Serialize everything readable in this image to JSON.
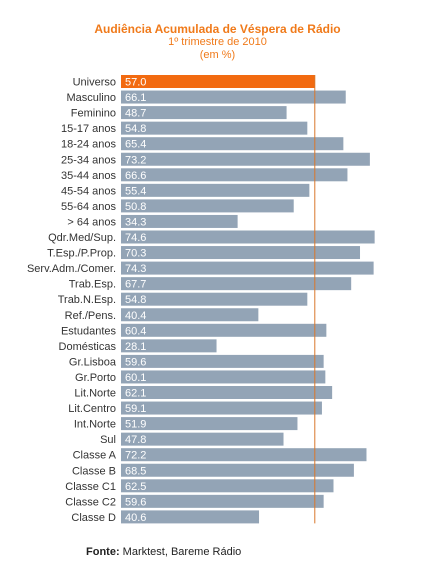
{
  "colors": {
    "title": "#f07a1a",
    "bar": "#93a4b6",
    "highlight_bar": "#f26a10",
    "reference_line": "#d9772b",
    "label": "#333333",
    "value_text": "#ffffff"
  },
  "title": {
    "main": "Audiência Acumulada de Véspera de Rádio",
    "sub1": "1º trimestre de 2010",
    "sub2": "(em %)"
  },
  "footer": {
    "label": "Fonte:",
    "text": " Marktest, Bareme Rádio"
  },
  "chart_data": {
    "type": "bar",
    "orientation": "horizontal",
    "title": "Audiência Acumulada de Véspera de Rádio",
    "subtitle": "1º trimestre de 2010 (em %)",
    "categories": [
      "Universo",
      "Masculino",
      "Feminino",
      "15-17 anos",
      "18-24 anos",
      "25-34 anos",
      "35-44 anos",
      "45-54 anos",
      "55-64 anos",
      "> 64 anos",
      "Qdr.Med/Sup.",
      "T.Esp./P.Prop.",
      "Serv.Adm./Comer.",
      "Trab.Esp.",
      "Trab.N.Esp.",
      "Ref./Pens.",
      "Estudantes",
      "Domésticas",
      "Gr.Lisboa",
      "Gr.Porto",
      "Lit.Norte",
      "Lit.Centro",
      "Int.Norte",
      "Sul",
      "Classe A",
      "Classe B",
      "Classe C1",
      "Classe C2",
      "Classe D"
    ],
    "values": [
      57.0,
      66.1,
      48.7,
      54.8,
      65.4,
      73.2,
      66.6,
      55.4,
      50.8,
      34.3,
      74.6,
      70.3,
      74.3,
      67.7,
      54.8,
      40.4,
      60.4,
      28.1,
      59.6,
      60.1,
      62.1,
      59.1,
      51.9,
      47.8,
      72.2,
      68.5,
      62.5,
      59.6,
      40.6
    ],
    "value_labels": [
      "57.0",
      "66.1",
      "48.7",
      "54.8",
      "65.4",
      "73.2",
      "66.6",
      "55.4",
      "50.8",
      "34.3",
      "74.6",
      "70.3",
      "74.3",
      "67.7",
      "54.8",
      "40.4",
      "60.4",
      "28.1",
      "59.6",
      "60.1",
      "62.1",
      "59.1",
      "51.9",
      "47.8",
      "72.2",
      "68.5",
      "62.5",
      "59.6",
      "40.6"
    ],
    "highlight_category": "Universo",
    "reference_value": 57.0,
    "xlim": [
      0,
      75
    ],
    "grid": false,
    "legend": "none"
  }
}
